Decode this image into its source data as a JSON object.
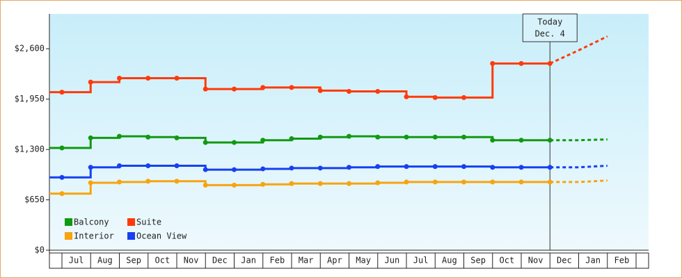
{
  "chart_data": {
    "type": "line",
    "step": true,
    "categories": [
      "Jul",
      "Aug",
      "Sep",
      "Oct",
      "Nov",
      "Dec",
      "Jan",
      "Feb",
      "Mar",
      "Apr",
      "May",
      "Jun",
      "Jul",
      "Aug",
      "Sep",
      "Oct",
      "Nov",
      "Dec",
      "Jan",
      "Feb"
    ],
    "series": [
      {
        "name": "Balcony",
        "color": "#119911",
        "values": [
          1320,
          1450,
          1470,
          1460,
          1450,
          1390,
          1390,
          1420,
          1440,
          1460,
          1470,
          1460,
          1460,
          1460,
          1460,
          1420,
          1420,
          1420,
          null,
          null
        ],
        "forecast": [
          null,
          null,
          null,
          null,
          null,
          null,
          null,
          null,
          null,
          null,
          null,
          null,
          null,
          null,
          null,
          null,
          null,
          1420,
          1420,
          1430
        ]
      },
      {
        "name": "Suite",
        "color": "#ff3a0a",
        "values": [
          2040,
          2170,
          2220,
          2220,
          2220,
          2080,
          2080,
          2100,
          2100,
          2060,
          2050,
          2050,
          1980,
          1970,
          1970,
          2410,
          2410,
          2410,
          null,
          null
        ],
        "forecast": [
          null,
          null,
          null,
          null,
          null,
          null,
          null,
          null,
          null,
          null,
          null,
          null,
          null,
          null,
          null,
          null,
          null,
          2410,
          2580,
          2760
        ]
      },
      {
        "name": "Interior",
        "color": "#f7a40f",
        "values": [
          730,
          870,
          880,
          890,
          890,
          840,
          840,
          850,
          860,
          860,
          860,
          870,
          880,
          880,
          880,
          880,
          880,
          880,
          null,
          null
        ],
        "forecast": [
          null,
          null,
          null,
          null,
          null,
          null,
          null,
          null,
          null,
          null,
          null,
          null,
          null,
          null,
          null,
          null,
          null,
          880,
          880,
          900
        ]
      },
      {
        "name": "Ocean View",
        "color": "#1640f0",
        "values": [
          940,
          1070,
          1090,
          1090,
          1090,
          1040,
          1040,
          1050,
          1060,
          1060,
          1070,
          1080,
          1080,
          1080,
          1080,
          1070,
          1070,
          1070,
          null,
          null
        ],
        "forecast": [
          null,
          null,
          null,
          null,
          null,
          null,
          null,
          null,
          null,
          null,
          null,
          null,
          null,
          null,
          null,
          null,
          null,
          1070,
          1070,
          1090
        ]
      }
    ],
    "ylim": [
      0,
      3050
    ],
    "yticks": [
      {
        "value": 0,
        "label": "$0"
      },
      {
        "value": 650,
        "label": "$650"
      },
      {
        "value": 1300,
        "label": "$1,300"
      },
      {
        "value": 1950,
        "label": "$1,950"
      },
      {
        "value": 2600,
        "label": "$2,600"
      }
    ],
    "annotation": [
      "Today",
      "Dec. 4"
    ],
    "legend": "lower left"
  }
}
